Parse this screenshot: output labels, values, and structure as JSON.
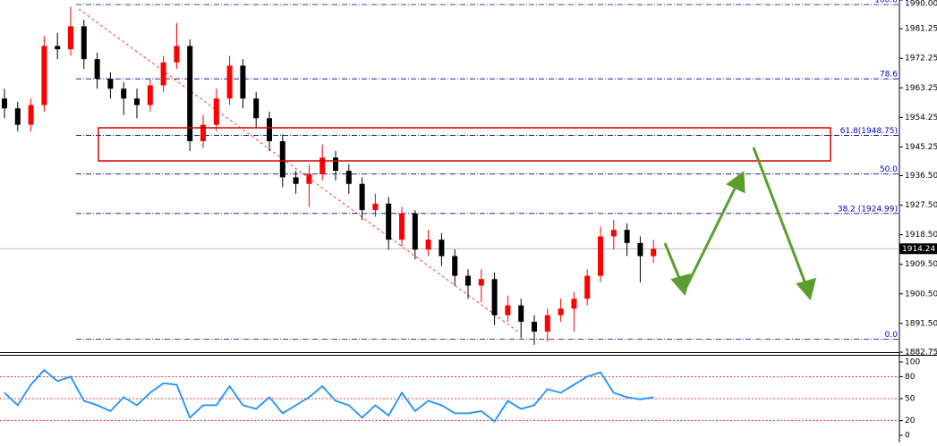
{
  "chart_data": [
    {
      "type": "candlestick",
      "open": [
        1960,
        1957,
        1952,
        1958,
        1976,
        1975,
        1982,
        1972,
        1966,
        1963,
        1960,
        1958,
        1964,
        1971,
        1976,
        1947,
        1952,
        1960,
        1970,
        1960,
        1954,
        1947,
        1936,
        1934,
        1937,
        1942,
        1938,
        1934,
        1926,
        1928,
        1917,
        1925,
        1914,
        1917,
        1912,
        1906,
        1903,
        1905,
        1894,
        1897,
        1892,
        1889,
        1894,
        1896,
        1899,
        1906,
        1918,
        1920,
        1916,
        1912
      ],
      "high": [
        1963,
        1959,
        1960,
        1979,
        1980,
        1988,
        1984,
        1974,
        1968,
        1965,
        1963,
        1966,
        1973,
        1983,
        1978,
        1955,
        1963,
        1973,
        1972,
        1962,
        1956,
        1949,
        1938,
        1940,
        1946,
        1944,
        1940,
        1936,
        1931,
        1930,
        1927,
        1926,
        1920,
        1919,
        1914,
        1908,
        1908,
        1907,
        1900,
        1899,
        1894,
        1896,
        1899,
        1901,
        1908,
        1921,
        1923,
        1922,
        1918,
        1917
      ],
      "low": [
        1954,
        1950,
        1950,
        1956,
        1972,
        1973,
        1969,
        1963,
        1960,
        1955,
        1954,
        1956,
        1962,
        1969,
        1944,
        1945,
        1950,
        1958,
        1957,
        1951,
        1944,
        1933,
        1931,
        1927,
        1935,
        1935,
        1931,
        1923,
        1924,
        1914,
        1915,
        1911,
        1912,
        1909,
        1903,
        1899,
        1898,
        1891,
        1892,
        1887,
        1885,
        1886,
        1892,
        1889,
        1897,
        1904,
        1914,
        1912,
        1904,
        1910
      ],
      "close": [
        1957,
        1952,
        1958,
        1976,
        1975,
        1982,
        1972,
        1966,
        1963,
        1960,
        1958,
        1964,
        1971,
        1976,
        1947,
        1952,
        1960,
        1970,
        1960,
        1954,
        1947,
        1936,
        1934,
        1937,
        1942,
        1938,
        1934,
        1926,
        1928,
        1917,
        1925,
        1914,
        1917,
        1912,
        1906,
        1903,
        1905,
        1894,
        1897,
        1892,
        1889,
        1894,
        1896,
        1899,
        1906,
        1918,
        1920,
        1916,
        1912,
        1914.24
      ],
      "up_color": "#ff0000",
      "down_color": "#000000",
      "ylim": [
        1882.75,
        1990
      ],
      "yticks": [
        {
          "value": 1990,
          "label": "1990.00"
        },
        1981.25,
        1972.25,
        1963.25,
        1954.25,
        1945.25,
        {
          "value": 1936.5,
          "label": "1936.50"
        },
        {
          "value": 1927.5,
          "label": "1927.50"
        },
        {
          "value": 1918.5,
          "label": "1918.50"
        },
        {
          "value": 1909.5,
          "label": "1909.50"
        },
        {
          "value": 1900.5,
          "label": "1900.50"
        },
        {
          "value": 1891.5,
          "label": "1891.50"
        },
        1882.75
      ],
      "current_price": 1914.24,
      "fib_levels": [
        {
          "value": 1988.6,
          "label": "100.0"
        },
        {
          "value": 1966.0,
          "label": "78.6"
        },
        {
          "value": 1948.75,
          "label": "61.8(1948.75)"
        },
        {
          "value": 1937.0,
          "label": "50.0"
        },
        {
          "value": 1924.99,
          "label": "38.2 (1924.99)"
        },
        {
          "value": 1886.7,
          "label": "0.0"
        }
      ]
    },
    {
      "type": "line",
      "values": [
        58,
        41,
        69,
        89,
        74,
        80,
        47,
        41,
        33,
        52,
        41,
        58,
        71,
        69,
        24,
        41,
        41,
        67,
        41,
        36,
        52,
        30,
        41,
        52,
        67,
        47,
        41,
        24,
        41,
        27,
        58,
        33,
        47,
        41,
        30,
        30,
        33,
        19,
        47,
        36,
        41,
        63,
        58,
        69,
        80,
        86,
        58,
        52,
        49,
        52
      ],
      "color": "#1e90ff",
      "ylim": [
        0,
        100
      ],
      "yticks": [
        100,
        80,
        50,
        20,
        0
      ],
      "levels": [
        80,
        50,
        20
      ]
    }
  ]
}
